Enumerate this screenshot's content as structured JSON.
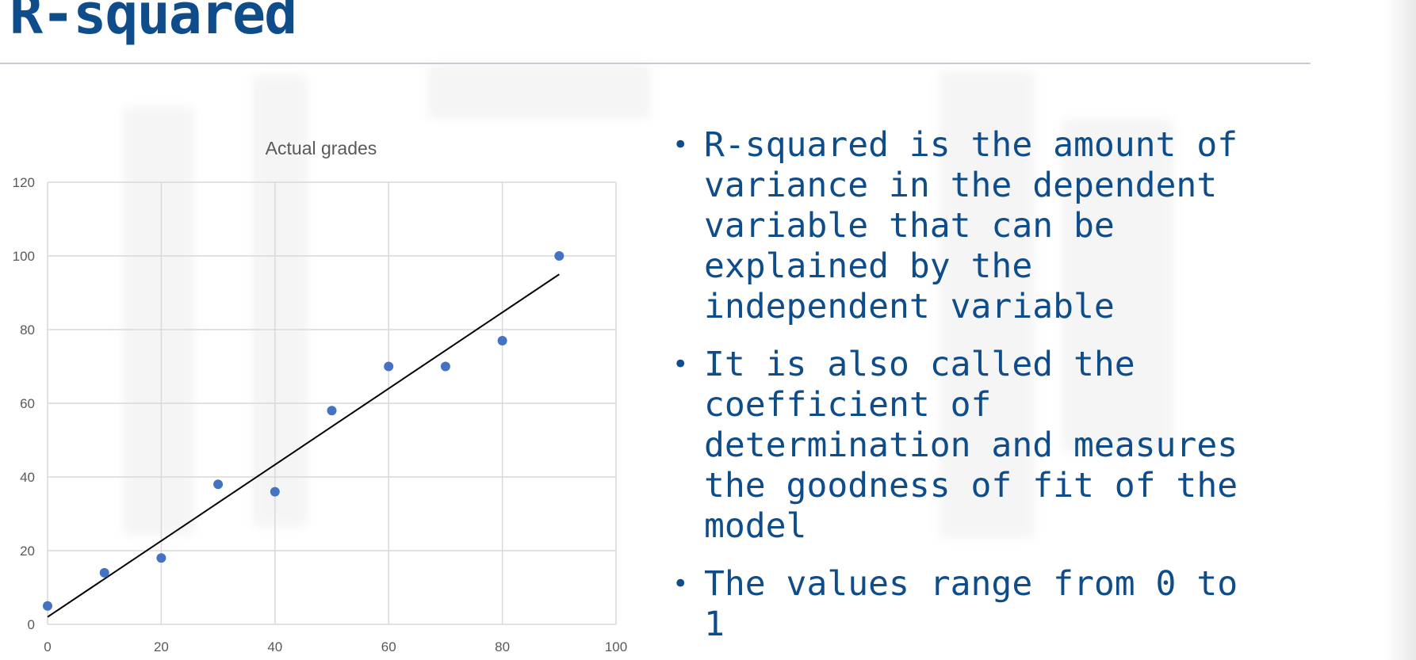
{
  "slide": {
    "title": "R-squared",
    "bullets": [
      "R-squared is the amount of variance in the dependent variable that can be explained by the independent variable",
      "It is also called the coefficient of determination and measures the goodness of fit of the model",
      "The values range from 0 to 1"
    ]
  },
  "colors": {
    "title": "#0f4c8a",
    "bullet_text": "#0f4c8a",
    "point": "#4472c4",
    "trendline": "#000000",
    "grid": "#d9d9d9",
    "axis_text": "#595959"
  },
  "chart_data": {
    "type": "scatter",
    "title": "Actual grades",
    "xlabel": "",
    "ylabel": "",
    "xlim": [
      0,
      100
    ],
    "ylim": [
      0,
      120
    ],
    "xticks": [
      0,
      20,
      40,
      60,
      80,
      100
    ],
    "yticks": [
      0,
      20,
      40,
      60,
      80,
      100,
      120
    ],
    "grid": true,
    "legend": "none",
    "series": [
      {
        "x": [
          0,
          10,
          20,
          30,
          40,
          50,
          60,
          70,
          80,
          90
        ],
        "y": [
          5,
          14,
          18,
          38,
          36,
          58,
          70,
          70,
          77,
          100
        ]
      }
    ],
    "trendline": {
      "type": "linear",
      "x": [
        0,
        90
      ],
      "y": [
        2,
        95
      ]
    }
  }
}
